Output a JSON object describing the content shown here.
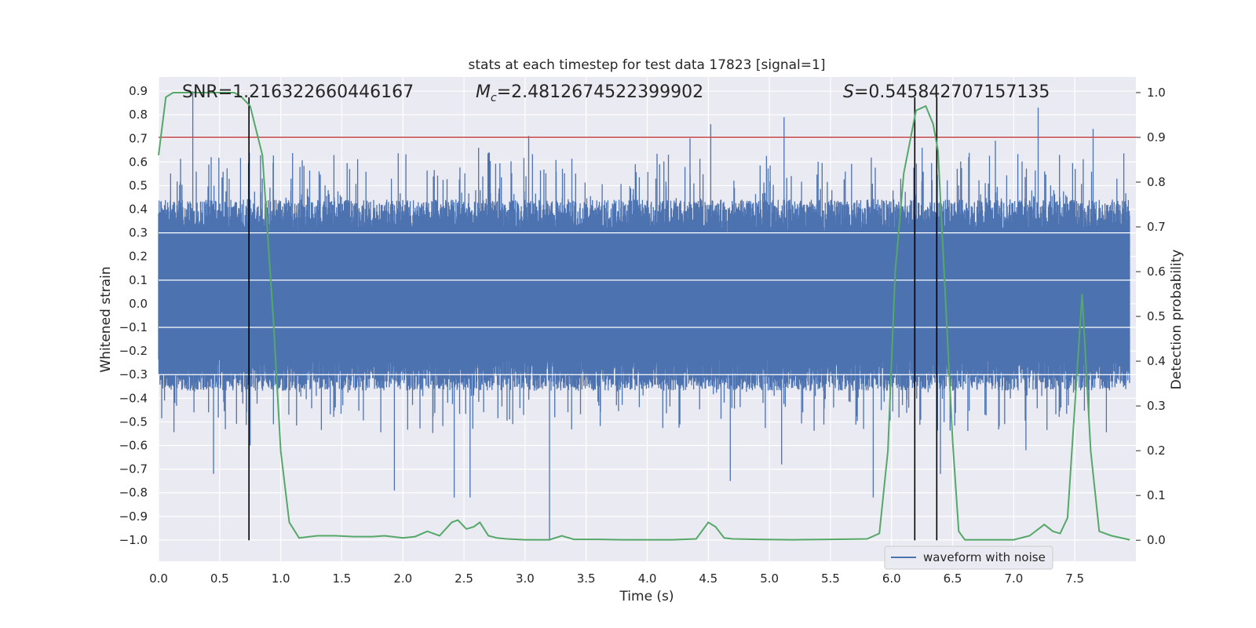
{
  "chart_data": {
    "type": "line",
    "title": "stats at each timestep for test data 17823 [signal=1]",
    "xlabel": "Time (s)",
    "ylabel": "Whitened strain",
    "y2label": "Detection probability",
    "xlim": [
      0.0,
      8.0
    ],
    "ylim": [
      -1.09,
      0.96
    ],
    "y2lim": [
      -0.047,
      1.035
    ],
    "x_ticks": [
      "0.0",
      "0.5",
      "1.0",
      "1.5",
      "2.0",
      "2.5",
      "3.0",
      "3.5",
      "4.0",
      "4.5",
      "5.0",
      "5.5",
      "6.0",
      "6.5",
      "7.0",
      "7.5"
    ],
    "y_ticks": [
      "0.9",
      "0.8",
      "0.7",
      "0.6",
      "0.5",
      "0.4",
      "0.3",
      "0.2",
      "0.1",
      "0.0",
      "−0.1",
      "−0.2",
      "−0.3",
      "−0.4",
      "−0.5",
      "−0.6",
      "−0.7",
      "−0.8",
      "−0.9",
      "−1.0"
    ],
    "y2_ticks": [
      "1.0",
      "0.9",
      "0.8",
      "0.7",
      "0.6",
      "0.5",
      "0.4",
      "0.3",
      "0.2",
      "0.1",
      "0.0"
    ],
    "grid": true,
    "legend": {
      "position": "lower-right",
      "entries": [
        "waveform with noise"
      ]
    },
    "annotations": {
      "snr": "SNR=1.216322660446167",
      "mc_label": "M",
      "mc_sub": "c",
      "mc_value": "=2.4812674522399902",
      "s_label": "S",
      "s_value": "=0.545842707157135"
    },
    "series": [
      {
        "name": "waveform with noise",
        "color": "#4c72b0",
        "style": "noise-band",
        "band_typical": [
          -0.32,
          0.42
        ],
        "peaks_max": [
          [
            0.28,
            0.9
          ],
          [
            4.52,
            0.76
          ],
          [
            5.12,
            0.79
          ],
          [
            7.2,
            0.83
          ],
          [
            7.65,
            0.74
          ],
          [
            2.62,
            0.66
          ],
          [
            3.03,
            0.71
          ],
          [
            4.35,
            0.7
          ],
          [
            6.25,
            0.66
          ],
          [
            6.85,
            0.69
          ]
        ],
        "peaks_min": [
          [
            3.2,
            -1.0
          ],
          [
            1.93,
            -0.79
          ],
          [
            2.42,
            -0.82
          ],
          [
            2.55,
            -0.82
          ],
          [
            5.85,
            -0.82
          ],
          [
            0.45,
            -0.72
          ],
          [
            4.68,
            -0.75
          ],
          [
            6.4,
            -0.72
          ],
          [
            5.1,
            -0.68
          ],
          [
            0.75,
            -0.6
          ],
          [
            7.1,
            -0.62
          ]
        ]
      },
      {
        "name": "",
        "color": "#55a868",
        "axis": "y2",
        "x": [
          0.0,
          0.06,
          0.12,
          0.25,
          0.45,
          0.62,
          0.68,
          0.75,
          0.85,
          0.94,
          1.0,
          1.07,
          1.15,
          1.3,
          1.45,
          1.6,
          1.75,
          1.85,
          2.0,
          2.1,
          2.2,
          2.3,
          2.4,
          2.45,
          2.52,
          2.58,
          2.63,
          2.7,
          2.77,
          2.85,
          3.0,
          3.2,
          3.3,
          3.4,
          3.6,
          3.8,
          4.0,
          4.2,
          4.4,
          4.5,
          4.56,
          4.63,
          4.7,
          4.9,
          5.2,
          5.5,
          5.8,
          5.9,
          5.97,
          6.03,
          6.1,
          6.2,
          6.28,
          6.34,
          6.38,
          6.43,
          6.5,
          6.55,
          6.6,
          6.7,
          7.0,
          7.13,
          7.25,
          7.32,
          7.38,
          7.44,
          7.5,
          7.56,
          7.63,
          7.7,
          7.8,
          7.95
        ],
        "y": [
          0.86,
          0.99,
          1.0,
          1.0,
          1.0,
          1.0,
          0.99,
          0.97,
          0.86,
          0.49,
          0.2,
          0.04,
          0.005,
          0.01,
          0.01,
          0.008,
          0.008,
          0.01,
          0.005,
          0.008,
          0.02,
          0.01,
          0.04,
          0.045,
          0.025,
          0.03,
          0.04,
          0.01,
          0.005,
          0.003,
          0.001,
          0.001,
          0.01,
          0.002,
          0.002,
          0.001,
          0.001,
          0.001,
          0.003,
          0.04,
          0.03,
          0.005,
          0.003,
          0.002,
          0.001,
          0.002,
          0.003,
          0.015,
          0.2,
          0.6,
          0.82,
          0.96,
          0.97,
          0.93,
          0.87,
          0.6,
          0.22,
          0.02,
          0.001,
          0.001,
          0.001,
          0.01,
          0.035,
          0.02,
          0.015,
          0.05,
          0.3,
          0.55,
          0.2,
          0.02,
          0.01,
          0.001
        ]
      }
    ],
    "threshold": {
      "axis": "y2",
      "value": 0.9,
      "color": "#c44e52"
    },
    "vertical_lines": [
      0.74,
      6.19,
      6.37
    ],
    "vertical_line_color": "#000000"
  }
}
